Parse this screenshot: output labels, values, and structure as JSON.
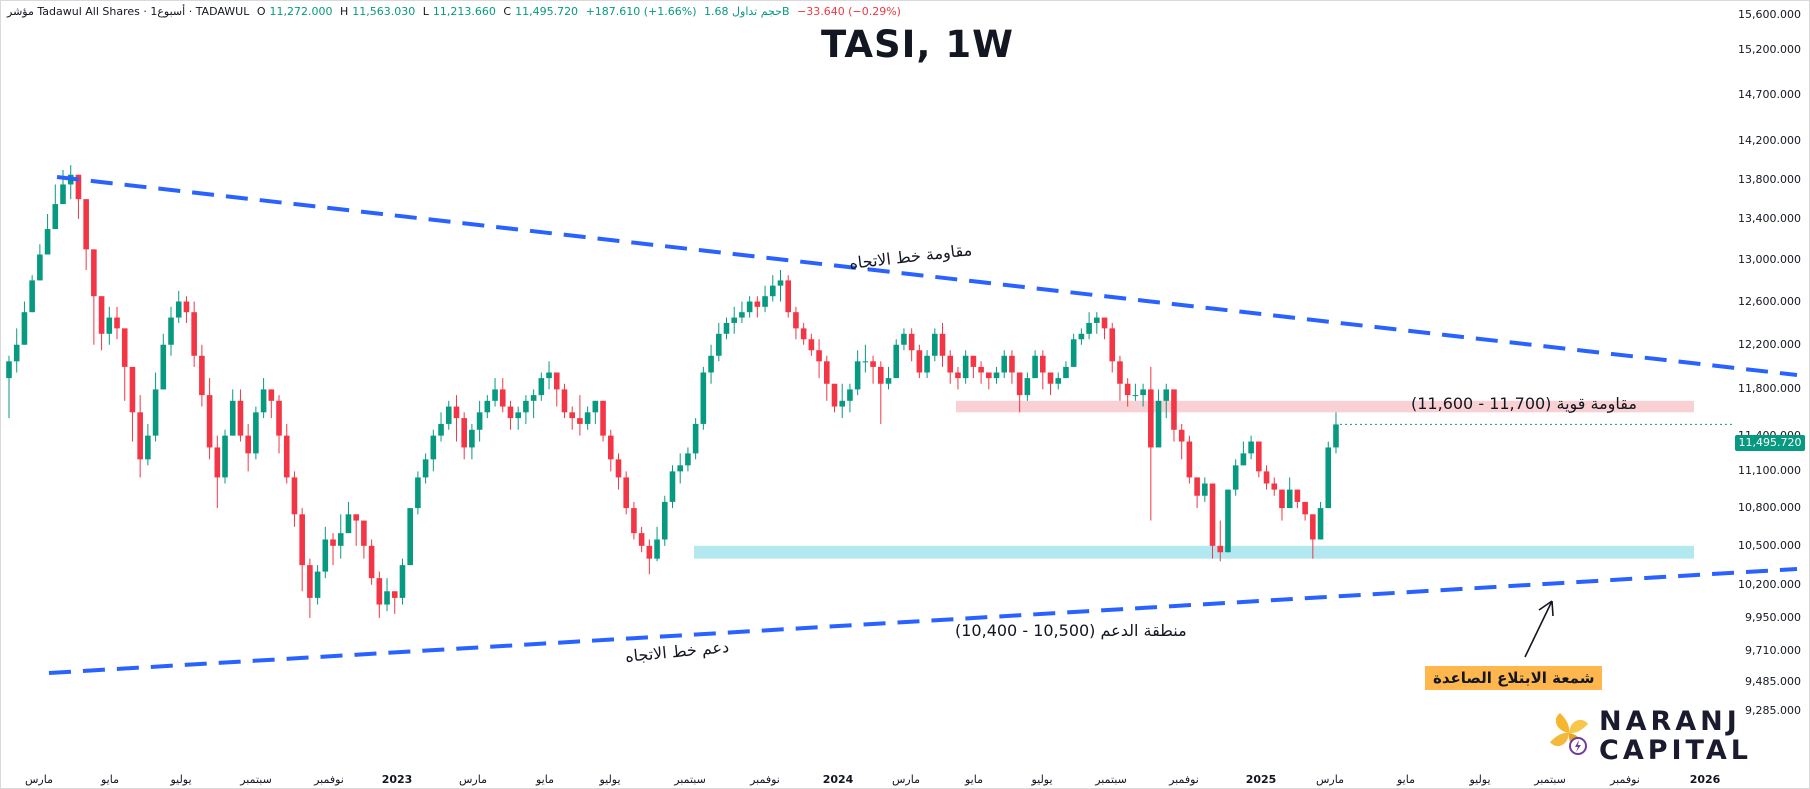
{
  "header": {
    "symbol": "مؤشر Tadawul All Shares · 1أسبوع · TADAWUL",
    "o_label": "O",
    "o_value": "11,272.000",
    "h_label": "H",
    "h_value": "11,563.030",
    "l_label": "L",
    "l_value": "11,213.660",
    "c_label": "C",
    "c_value": "11,495.720",
    "change": "+187.610 (+1.66%)",
    "volume": "حجم تداول 1.68B",
    "vol_change": "−33.640 (−0.29%)"
  },
  "colors": {
    "up": "#089981",
    "down": "#f23645",
    "trend": "#2962ff",
    "resistance_zone": "#f8c8cc",
    "support_zone": "#a7e4ef",
    "badge": "#089981",
    "label_bg": "#ffb74d"
  },
  "chart_data": {
    "type": "candlestick",
    "title": "TASI, 1W",
    "ylim": [
      9050,
      15650
    ],
    "y_ticks": [
      "15,600.000",
      "15,200.000",
      "14,700.000",
      "14,200.000",
      "13,800.000",
      "13,400.000",
      "13,000.000",
      "12,600.000",
      "12,200.000",
      "11,800.000",
      "11,400.000",
      "11,100.000",
      "10,800.000",
      "10,500.000",
      "10,200.000",
      "9,950.000",
      "9,710.000",
      "9,485.000",
      "9,285.000"
    ],
    "x_ticks": [
      "مارس",
      "مايو",
      "يوليو",
      "سبتمبر",
      "نوفمبر",
      "2023",
      "مارس",
      "مايو",
      "يوليو",
      "سبتمبر",
      "نوفمبر",
      "2024",
      "مارس",
      "مايو",
      "يوليو",
      "سبتمبر",
      "نوفمبر",
      "2025",
      "مارس",
      "مايو",
      "يوليو",
      "سبتمبر",
      "نوفمبر",
      "2026"
    ],
    "last_price": "11,495.720",
    "closes": [
      12050,
      12200,
      12500,
      12800,
      13050,
      13300,
      13550,
      13750,
      13850,
      13600,
      13100,
      12650,
      12300,
      12450,
      12350,
      12000,
      11600,
      11200,
      11400,
      11800,
      12200,
      12450,
      12600,
      12500,
      12100,
      11750,
      11300,
      11050,
      11400,
      11700,
      11400,
      11250,
      11600,
      11800,
      11700,
      11400,
      11050,
      10750,
      10350,
      10100,
      10300,
      10550,
      10500,
      10600,
      10750,
      10700,
      10500,
      10250,
      10050,
      10150,
      10100,
      10350,
      10800,
      11050,
      11200,
      11400,
      11500,
      11650,
      11550,
      11300,
      11450,
      11600,
      11700,
      11800,
      11650,
      11550,
      11600,
      11700,
      11750,
      11900,
      11950,
      11800,
      11600,
      11550,
      11500,
      11600,
      11700,
      11400,
      11200,
      11050,
      10800,
      10600,
      10500,
      10400,
      10550,
      10850,
      11100,
      11150,
      11250,
      11500,
      11950,
      12100,
      12300,
      12400,
      12450,
      12500,
      12600,
      12550,
      12650,
      12750,
      12800,
      12500,
      12350,
      12250,
      12150,
      12050,
      11850,
      11650,
      11700,
      11800,
      12050,
      12050,
      12000,
      11850,
      11900,
      12200,
      12300,
      12150,
      11950,
      12100,
      12300,
      12100,
      11950,
      11900,
      12100,
      12000,
      11950,
      11900,
      11950,
      12100,
      11950,
      11750,
      11900,
      12100,
      11950,
      11850,
      11900,
      12000,
      12250,
      12300,
      12400,
      12450,
      12350,
      12050,
      11850,
      11750,
      11750,
      11800,
      11300,
      11700,
      11800,
      11450,
      11350,
      11050,
      10900,
      11000,
      10500,
      10450,
      10950,
      11150,
      11250,
      11350,
      11100,
      11000,
      10950,
      10800,
      10950,
      10850,
      10750,
      10550,
      10800,
      11300,
      11495.72
    ],
    "wicks": [
      [
        11550,
        12100
      ],
      [
        11950,
        12350
      ],
      [
        12350,
        12600
      ],
      [
        12600,
        12850
      ],
      [
        12900,
        13150
      ],
      [
        13050,
        13450
      ],
      [
        13450,
        13750
      ],
      [
        13650,
        13900
      ],
      [
        13600,
        13950
      ],
      [
        13400,
        13800
      ],
      [
        12900,
        13250
      ],
      [
        12200,
        12750
      ],
      [
        12150,
        12500
      ],
      [
        12200,
        12550
      ],
      [
        12250,
        12550
      ],
      [
        11700,
        12100
      ],
      [
        11350,
        11900
      ],
      [
        11050,
        11750
      ],
      [
        11150,
        11500
      ],
      [
        11350,
        11950
      ],
      [
        11800,
        12300
      ],
      [
        12100,
        12550
      ],
      [
        12400,
        12700
      ],
      [
        12400,
        12650
      ],
      [
        12000,
        12600
      ],
      [
        11650,
        12200
      ],
      [
        11200,
        11900
      ],
      [
        10800,
        11400
      ],
      [
        11000,
        11450
      ],
      [
        11500,
        11800
      ],
      [
        11350,
        11800
      ],
      [
        11100,
        11500
      ],
      [
        11200,
        11650
      ],
      [
        11550,
        11900
      ],
      [
        11550,
        11800
      ],
      [
        11250,
        11750
      ],
      [
        11000,
        11500
      ],
      [
        10650,
        11100
      ],
      [
        10150,
        10800
      ],
      [
        9950,
        10400
      ],
      [
        10050,
        10350
      ],
      [
        10250,
        10650
      ],
      [
        10350,
        10600
      ],
      [
        10400,
        10750
      ],
      [
        10650,
        10850
      ],
      [
        10500,
        10750
      ],
      [
        10400,
        10650
      ],
      [
        10200,
        10550
      ],
      [
        9950,
        10300
      ],
      [
        10000,
        10250
      ],
      [
        9980,
        10150
      ],
      [
        10050,
        10400
      ],
      [
        10350,
        10800
      ],
      [
        10750,
        11100
      ],
      [
        11000,
        11250
      ],
      [
        11100,
        11450
      ],
      [
        11350,
        11600
      ],
      [
        11450,
        11700
      ],
      [
        11350,
        11750
      ],
      [
        11200,
        11600
      ],
      [
        11200,
        11500
      ],
      [
        11350,
        11700
      ],
      [
        11550,
        11750
      ],
      [
        11650,
        11900
      ],
      [
        11600,
        11900
      ],
      [
        11450,
        11700
      ],
      [
        11450,
        11650
      ],
      [
        11500,
        11750
      ],
      [
        11550,
        11800
      ],
      [
        11700,
        11950
      ],
      [
        11800,
        12050
      ],
      [
        11650,
        11950
      ],
      [
        11550,
        11850
      ],
      [
        11450,
        11650
      ],
      [
        11400,
        11750
      ],
      [
        11450,
        11650
      ],
      [
        11500,
        11700
      ],
      [
        11350,
        11650
      ],
      [
        11100,
        11450
      ],
      [
        10950,
        11250
      ],
      [
        10750,
        11100
      ],
      [
        10550,
        10850
      ],
      [
        10450,
        10650
      ],
      [
        10280,
        10550
      ],
      [
        10380,
        10650
      ],
      [
        10500,
        10900
      ],
      [
        10800,
        11150
      ],
      [
        11000,
        11250
      ],
      [
        11100,
        11300
      ],
      [
        11200,
        11550
      ],
      [
        11450,
        12000
      ],
      [
        11850,
        12200
      ],
      [
        12050,
        12400
      ],
      [
        12250,
        12450
      ],
      [
        12300,
        12550
      ],
      [
        12400,
        12600
      ],
      [
        12450,
        12650
      ],
      [
        12450,
        12650
      ],
      [
        12500,
        12750
      ],
      [
        12600,
        12850
      ],
      [
        12600,
        12900
      ],
      [
        12450,
        12850
      ],
      [
        12250,
        12550
      ],
      [
        12200,
        12400
      ],
      [
        12100,
        12300
      ],
      [
        11900,
        12250
      ],
      [
        11700,
        12100
      ],
      [
        11600,
        11800
      ],
      [
        11550,
        11850
      ],
      [
        11600,
        11850
      ],
      [
        11750,
        12150
      ],
      [
        11950,
        12200
      ],
      [
        11850,
        12100
      ],
      [
        11500,
        12050
      ],
      [
        11800,
        12000
      ],
      [
        11900,
        12250
      ],
      [
        12150,
        12350
      ],
      [
        12050,
        12350
      ],
      [
        11900,
        12200
      ],
      [
        11900,
        12150
      ],
      [
        12050,
        12350
      ],
      [
        12000,
        12400
      ],
      [
        11850,
        12150
      ],
      [
        11800,
        12000
      ],
      [
        11850,
        12150
      ],
      [
        11900,
        12100
      ],
      [
        11850,
        12050
      ],
      [
        11800,
        11950
      ],
      [
        11850,
        12000
      ],
      [
        11900,
        12150
      ],
      [
        11850,
        12150
      ],
      [
        11600,
        11950
      ],
      [
        11700,
        11950
      ],
      [
        11900,
        12150
      ],
      [
        11800,
        12150
      ],
      [
        11750,
        11950
      ],
      [
        11800,
        11950
      ],
      [
        11900,
        12050
      ],
      [
        12000,
        12300
      ],
      [
        12200,
        12350
      ],
      [
        12250,
        12500
      ],
      [
        12300,
        12500
      ],
      [
        12250,
        12450
      ],
      [
        11950,
        12400
      ],
      [
        11700,
        12100
      ],
      [
        11650,
        11900
      ],
      [
        11700,
        11850
      ],
      [
        11650,
        11850
      ],
      [
        10700,
        12000
      ],
      [
        11350,
        11800
      ],
      [
        11550,
        11850
      ],
      [
        11350,
        11700
      ],
      [
        11200,
        11500
      ],
      [
        11000,
        11400
      ],
      [
        10800,
        11050
      ],
      [
        10850,
        11050
      ],
      [
        10400,
        11000
      ],
      [
        10380,
        10700
      ],
      [
        10450,
        10950
      ],
      [
        10900,
        11200
      ],
      [
        11200,
        11350
      ],
      [
        11200,
        11400
      ],
      [
        11050,
        11300
      ],
      [
        10950,
        11150
      ],
      [
        10900,
        11050
      ],
      [
        10700,
        10950
      ],
      [
        10800,
        11050
      ],
      [
        10800,
        10900
      ],
      [
        10700,
        10800
      ],
      [
        10400,
        10750
      ],
      [
        10550,
        10850
      ],
      [
        10800,
        11350
      ],
      [
        11250,
        11600
      ]
    ]
  },
  "annotations": {
    "trend_resistance": "مقاومة خط الاتجاه",
    "trend_support": "دعم خط الاتجاه",
    "strong_resistance": "مقاومة قوية (11,700 - 11,600)",
    "support_zone": "منطقة الدعم (10,500 - 10,400)",
    "bullish_engulfing": "شمعة الابتلاع الصاعدة"
  },
  "logo": {
    "line1": "NARANJ",
    "line2": "CAPITAL"
  }
}
